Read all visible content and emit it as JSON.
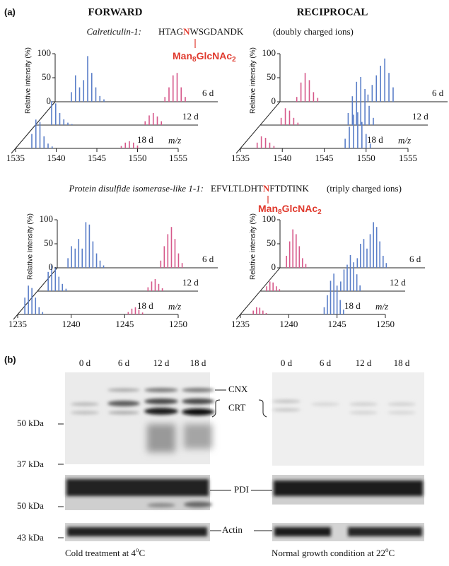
{
  "header": {
    "panel_a": "(a)",
    "forward": "FORWARD",
    "reciprocal": "RECIPROCAL",
    "panel_b": "(b)"
  },
  "peptides": [
    {
      "protein": "Calreticulin-1:",
      "seq_before": "HTAG",
      "site": "N",
      "seq_after": "WSGDANDK",
      "charge": "(doubly charged ions)"
    },
    {
      "protein": "Protein disulfide isomerase-like 1-1:",
      "seq_before": "EFVLTLDHT",
      "site": "N",
      "seq_after": "FTDTINK",
      "charge": "(triply charged ions)"
    }
  ],
  "glycan": [
    "Man",
    "8",
    "GlcNAc",
    "2"
  ],
  "chart_data": [
    {
      "type": "stick",
      "y_label": "Relative intensity (%)",
      "x_label": "m/z",
      "xlim": [
        1535,
        1555
      ],
      "xticks": [
        1535,
        1540,
        1545,
        1550,
        1555
      ],
      "ylim": [
        0,
        100
      ],
      "yticks": [
        0,
        50,
        100
      ],
      "traces": [
        {
          "label": "6 d",
          "series": [
            {
              "color": "#5a7ec8",
              "x": [
                1537,
                1537.5,
                1538,
                1538.5,
                1539,
                1539.5,
                1540,
                1540.5,
                1541
              ],
              "values": [
                20,
                55,
                30,
                45,
                95,
                60,
                30,
                12,
                5
              ]
            },
            {
              "color": "#d6588a",
              "x": [
                1548.5,
                1549,
                1549.5,
                1550,
                1550.5,
                1551
              ],
              "values": [
                10,
                30,
                55,
                60,
                30,
                10
              ]
            }
          ]
        },
        {
          "label": "12 d",
          "series": [
            {
              "color": "#5a7ec8",
              "x": [
                1537,
                1537.5,
                1538,
                1538.5,
                1539,
                1539.5
              ],
              "values": [
                50,
                45,
                25,
                12,
                5,
                2
              ]
            },
            {
              "color": "#d6588a",
              "x": [
                1548.5,
                1549,
                1549.5,
                1550,
                1550.5
              ],
              "values": [
                8,
                20,
                25,
                18,
                8
              ]
            }
          ]
        },
        {
          "label": "18 d",
          "series": [
            {
              "color": "#5a7ec8",
              "x": [
                1537,
                1537.5,
                1538,
                1538.5,
                1539,
                1539.5
              ],
              "values": [
                30,
                60,
                55,
                25,
                10,
                4
              ]
            },
            {
              "color": "#d6588a",
              "x": [
                1548,
                1548.5,
                1549,
                1549.5,
                1550
              ],
              "values": [
                5,
                12,
                15,
                12,
                6
              ]
            }
          ]
        }
      ]
    },
    {
      "type": "stick",
      "y_label": "Relative intensity (%)",
      "x_label": "m/z",
      "xlim": [
        1535,
        1555
      ],
      "xticks": [
        1535,
        1540,
        1545,
        1550,
        1555
      ],
      "ylim": [
        0,
        100
      ],
      "yticks": [
        0,
        50,
        100
      ],
      "traces": [
        {
          "label": "6 d",
          "series": [
            {
              "color": "#d6588a",
              "x": [
                1537,
                1537.5,
                1538,
                1538.5,
                1539,
                1539.5
              ],
              "values": [
                10,
                40,
                60,
                45,
                20,
                8
              ]
            },
            {
              "color": "#5a7ec8",
              "x": [
                1545.5,
                1546,
                1546.5,
                1547,
                1547.5,
                1548,
                1548.5
              ],
              "values": [
                15,
                35,
                55,
                75,
                90,
                60,
                30
              ]
            }
          ]
        },
        {
          "label": "12 d",
          "series": [
            {
              "color": "#d6588a",
              "x": [
                1537.5,
                1538,
                1538.5,
                1539,
                1539.5
              ],
              "values": [
                15,
                35,
                30,
                15,
                5
              ]
            },
            {
              "color": "#5a7ec8",
              "x": [
                1545.5,
                1546,
                1546.5,
                1547,
                1547.5,
                1548,
                1548.5
              ],
              "values": [
                25,
                60,
                90,
                100,
                75,
                40,
                15
              ]
            }
          ]
        },
        {
          "label": "18 d",
          "series": [
            {
              "color": "#d6588a",
              "x": [
                1537,
                1537.5,
                1538,
                1538.5,
                1539
              ],
              "values": [
                12,
                25,
                22,
                12,
                5
              ]
            },
            {
              "color": "#5a7ec8",
              "x": [
                1547.5,
                1548,
                1548.5,
                1549,
                1549.5,
                1550,
                1550.5
              ],
              "values": [
                20,
                45,
                70,
                75,
                55,
                30,
                10
              ]
            }
          ]
        }
      ]
    },
    {
      "type": "stick",
      "y_label": "Relative intensity (%)",
      "x_label": "m/z",
      "xlim": [
        1235,
        1250
      ],
      "xticks": [
        1235,
        1240,
        1245,
        1250
      ],
      "ylim": [
        0,
        100
      ],
      "yticks": [
        0,
        50,
        100
      ],
      "traces": [
        {
          "label": "6 d",
          "series": [
            {
              "color": "#5a7ec8",
              "x": [
                1236,
                1236.33,
                1236.67,
                1237,
                1237.33,
                1237.67,
                1238,
                1238.33,
                1238.67,
                1239,
                1239.33
              ],
              "values": [
                20,
                45,
                40,
                60,
                40,
                95,
                90,
                55,
                30,
                15,
                5
              ]
            },
            {
              "color": "#d6588a",
              "x": [
                1244.67,
                1245,
                1245.33,
                1245.67,
                1246,
                1246.33,
                1246.67
              ],
              "values": [
                15,
                45,
                70,
                85,
                60,
                30,
                10
              ]
            }
          ]
        },
        {
          "label": "12 d",
          "series": [
            {
              "color": "#5a7ec8",
              "x": [
                1236,
                1236.33,
                1236.67,
                1237,
                1237.33,
                1237.67
              ],
              "values": [
                40,
                55,
                50,
                30,
                15,
                5
              ]
            },
            {
              "color": "#d6588a",
              "x": [
                1245.33,
                1245.67,
                1246,
                1246.33,
                1246.67
              ],
              "values": [
                8,
                20,
                25,
                15,
                6
              ]
            }
          ]
        },
        {
          "label": "18 d",
          "series": [
            {
              "color": "#5a7ec8",
              "x": [
                1235.67,
                1236,
                1236.33,
                1236.67,
                1237,
                1237.33
              ],
              "values": [
                35,
                60,
                55,
                35,
                15,
                5
              ]
            },
            {
              "color": "#d6588a",
              "x": [
                1245.33,
                1245.67,
                1246,
                1246.33,
                1246.67
              ],
              "values": [
                5,
                12,
                15,
                10,
                4
              ]
            }
          ]
        }
      ]
    },
    {
      "type": "stick",
      "y_label": "Relative intensity (%)",
      "x_label": "m/z",
      "xlim": [
        1235,
        1250
      ],
      "xticks": [
        1235,
        1240,
        1245,
        1250
      ],
      "ylim": [
        0,
        100
      ],
      "yticks": [
        0,
        50,
        100
      ],
      "traces": [
        {
          "label": "6 d",
          "series": [
            {
              "color": "#d6588a",
              "x": [
                1235.67,
                1236,
                1236.33,
                1236.67,
                1237,
                1237.33,
                1237.67
              ],
              "values": [
                25,
                55,
                80,
                70,
                45,
                20,
                8
              ]
            },
            {
              "color": "#5a7ec8",
              "x": [
                1243,
                1243.33,
                1243.67,
                1244,
                1244.33,
                1244.67,
                1245,
                1245.33,
                1245.67,
                1246
              ],
              "values": [
                20,
                50,
                60,
                40,
                70,
                95,
                85,
                55,
                25,
                10
              ]
            }
          ]
        },
        {
          "label": "12 d",
          "series": [
            {
              "color": "#d6588a",
              "x": [
                1235.67,
                1236,
                1236.33,
                1236.67,
                1237
              ],
              "values": [
                10,
                20,
                18,
                10,
                4
              ]
            },
            {
              "color": "#5a7ec8",
              "x": [
                1243.33,
                1243.67,
                1244,
                1244.33,
                1244.67,
                1245,
                1245.33
              ],
              "values": [
                20,
                45,
                55,
                75,
                60,
                35,
                12
              ]
            }
          ]
        },
        {
          "label": "18 d",
          "series": [
            {
              "color": "#d6588a",
              "x": [
                1236.33,
                1236.67,
                1237,
                1237.33,
                1237.67
              ],
              "values": [
                8,
                15,
                14,
                8,
                3
              ]
            },
            {
              "color": "#5a7ec8",
              "x": [
                1243.67,
                1244,
                1244.33,
                1244.67,
                1245,
                1245.33,
                1245.67
              ],
              "values": [
                15,
                40,
                70,
                85,
                60,
                30,
                10
              ]
            }
          ]
        }
      ]
    }
  ],
  "blot": {
    "lanes": [
      "0 d",
      "6 d",
      "12 d",
      "18 d"
    ],
    "proteins": {
      "cnx": "CNX",
      "crt": "CRT",
      "pdi": "PDI",
      "actin": "Actin"
    },
    "markers": [
      "50 kDa",
      "37 kDa",
      "50 kDa",
      "43 kDa"
    ],
    "captions": [
      [
        "Cold treatment at 4",
        "o",
        "C"
      ],
      [
        "Normal growth condition at 22",
        "o",
        "C"
      ]
    ]
  }
}
